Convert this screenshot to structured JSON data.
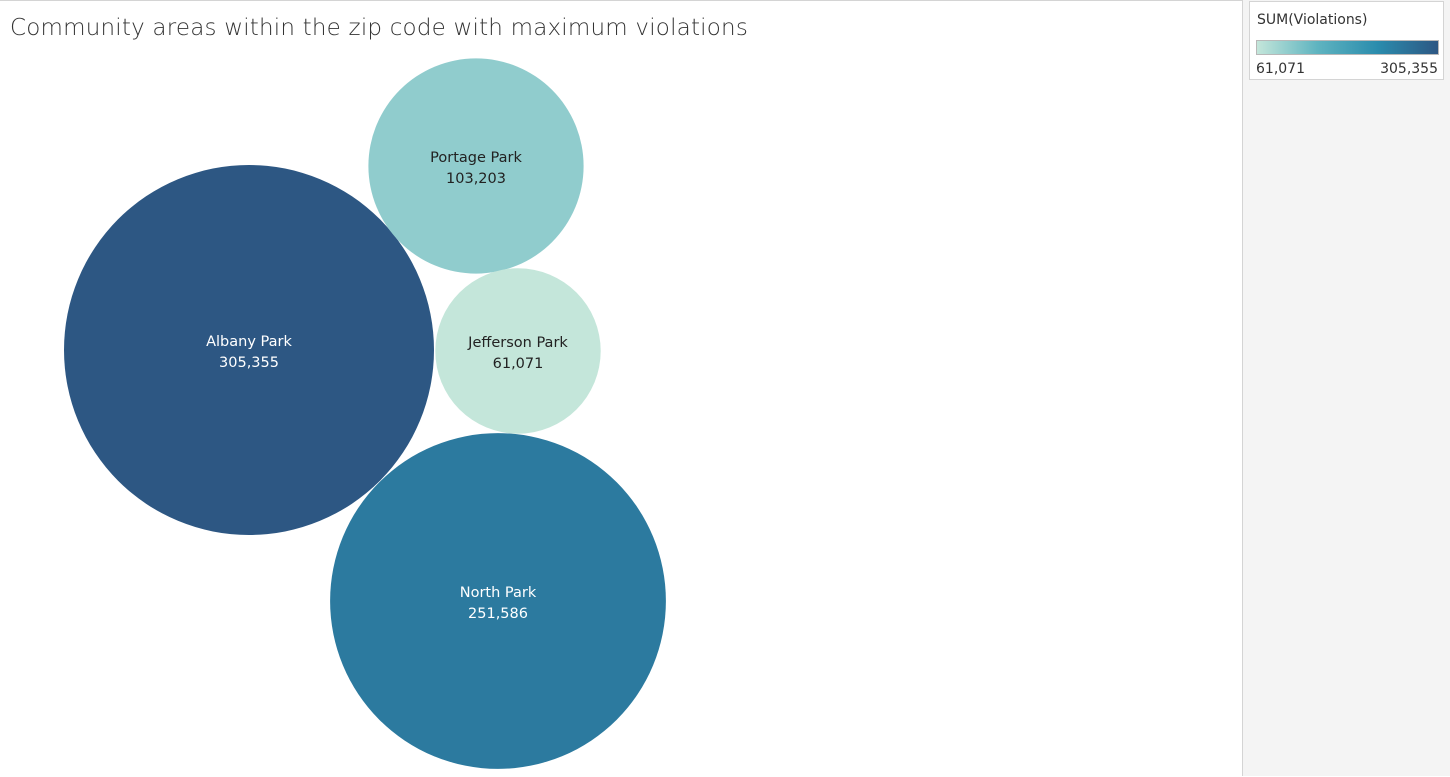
{
  "chart_data": {
    "type": "packed-bubble",
    "title": "Community areas within the zip code with maximum violations",
    "measure": "SUM(Violations)",
    "items": [
      {
        "name": "Albany Park",
        "value": 305355,
        "label_value": "305,355"
      },
      {
        "name": "North Park",
        "value": 251586,
        "label_value": "251,586"
      },
      {
        "name": "Portage Park",
        "value": 103203,
        "label_value": "103,203"
      },
      {
        "name": "Jefferson Park",
        "value": 61071,
        "label_value": "61,071"
      }
    ],
    "color_scale": {
      "min": 61071,
      "max": 305355,
      "min_label": "61,071",
      "max_label": "305,355",
      "colors": [
        "#c4e6da",
        "#5fb4c0",
        "#2b8cad",
        "#2d5783"
      ]
    }
  },
  "legend": {
    "title": "SUM(Violations)",
    "min_label": "61,071",
    "max_label": "305,355"
  }
}
